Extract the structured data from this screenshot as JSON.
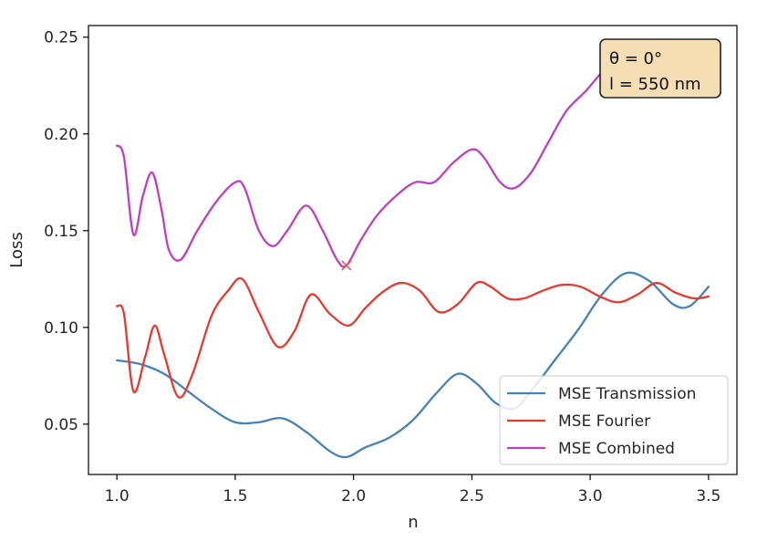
{
  "chart_data": {
    "type": "line",
    "xlabel": "n",
    "ylabel": "Loss",
    "xlim": [
      0.88,
      3.62
    ],
    "ylim": [
      0.024,
      0.256
    ],
    "xticks": [
      1.0,
      1.5,
      2.0,
      2.5,
      3.0,
      3.5
    ],
    "xtick_labels": [
      "1.0",
      "1.5",
      "2.0",
      "2.5",
      "3.0",
      "3.5"
    ],
    "yticks": [
      0.05,
      0.1,
      0.15,
      0.2,
      0.25
    ],
    "ytick_labels": [
      "0.05",
      "0.10",
      "0.15",
      "0.20",
      "0.25"
    ],
    "grid": false,
    "legend_position": "lower-right",
    "annotation_lines": [
      "θ = 0°",
      "l = 550 nm"
    ],
    "annotation_position": "top-right",
    "annotation_color": "#f5deb3",
    "marker": {
      "x": 1.97,
      "y": 0.132,
      "symbol": "x",
      "color": "#e35b5b"
    },
    "series": [
      {
        "name": "MSE Transmission",
        "color": "#4682b4",
        "x": [
          1.0,
          1.1,
          1.2,
          1.3,
          1.4,
          1.5,
          1.6,
          1.7,
          1.8,
          1.9,
          1.97,
          2.05,
          2.15,
          2.25,
          2.35,
          2.44,
          2.52,
          2.6,
          2.68,
          2.75,
          2.85,
          2.95,
          3.05,
          3.15,
          3.25,
          3.35,
          3.42,
          3.5
        ],
        "y": [
          0.083,
          0.081,
          0.076,
          0.067,
          0.058,
          0.051,
          0.051,
          0.053,
          0.046,
          0.036,
          0.033,
          0.038,
          0.043,
          0.052,
          0.066,
          0.076,
          0.071,
          0.061,
          0.058,
          0.067,
          0.083,
          0.099,
          0.117,
          0.128,
          0.124,
          0.112,
          0.111,
          0.121
        ]
      },
      {
        "name": "MSE Fourier",
        "color": "#e8392f",
        "x": [
          1.0,
          1.03,
          1.07,
          1.12,
          1.16,
          1.2,
          1.26,
          1.32,
          1.4,
          1.47,
          1.53,
          1.6,
          1.68,
          1.75,
          1.82,
          1.9,
          1.98,
          2.05,
          2.12,
          2.2,
          2.28,
          2.36,
          2.44,
          2.52,
          2.58,
          2.65,
          2.72,
          2.8,
          2.88,
          2.96,
          3.04,
          3.12,
          3.2,
          3.28,
          3.36,
          3.44,
          3.5
        ],
        "y": [
          0.111,
          0.107,
          0.067,
          0.085,
          0.101,
          0.086,
          0.064,
          0.076,
          0.106,
          0.119,
          0.125,
          0.108,
          0.09,
          0.098,
          0.117,
          0.107,
          0.101,
          0.11,
          0.118,
          0.123,
          0.119,
          0.108,
          0.112,
          0.123,
          0.121,
          0.115,
          0.115,
          0.119,
          0.122,
          0.121,
          0.116,
          0.113,
          0.117,
          0.123,
          0.118,
          0.115,
          0.116
        ]
      },
      {
        "name": "MSE Combined",
        "color": "#bf40bf",
        "x": [
          1.0,
          1.03,
          1.07,
          1.11,
          1.15,
          1.19,
          1.22,
          1.27,
          1.34,
          1.42,
          1.5,
          1.54,
          1.6,
          1.66,
          1.72,
          1.8,
          1.87,
          1.93,
          1.97,
          2.03,
          2.1,
          2.18,
          2.26,
          2.34,
          2.42,
          2.5,
          2.55,
          2.62,
          2.68,
          2.75,
          2.82,
          2.9,
          2.98,
          3.05,
          3.1
        ],
        "y": [
          0.194,
          0.188,
          0.148,
          0.168,
          0.18,
          0.16,
          0.14,
          0.135,
          0.15,
          0.165,
          0.175,
          0.172,
          0.15,
          0.142,
          0.15,
          0.163,
          0.15,
          0.135,
          0.132,
          0.145,
          0.158,
          0.168,
          0.175,
          0.175,
          0.185,
          0.192,
          0.188,
          0.175,
          0.172,
          0.18,
          0.195,
          0.212,
          0.222,
          0.232,
          0.238
        ]
      }
    ]
  }
}
